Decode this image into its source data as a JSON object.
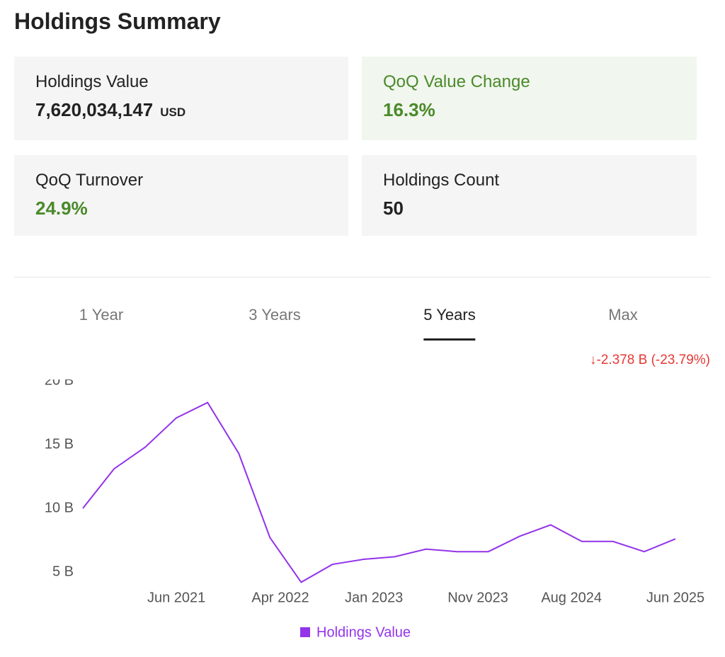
{
  "header": {
    "title": "Holdings Summary"
  },
  "cards": [
    {
      "label": "Holdings Value",
      "value": "7,620,034,147",
      "unit": "USD"
    },
    {
      "label": "QoQ Value Change",
      "value": "16.3%"
    },
    {
      "label": "QoQ Turnover",
      "value": "24.9%"
    },
    {
      "label": "Holdings Count",
      "value": "50"
    }
  ],
  "tabs": {
    "items": [
      "1 Year",
      "3 Years",
      "5 Years",
      "Max"
    ],
    "active": 2
  },
  "chart_data": {
    "type": "line",
    "annotation": "↓-2.378 B (-23.79%)",
    "x": [
      "Sep 2020",
      "Dec 2020",
      "Mar 2021",
      "Jun 2021",
      "Sep 2021",
      "Dec 2021",
      "Mar 2022",
      "Jun 2022",
      "Sep 2022",
      "Dec 2022",
      "Mar 2023",
      "Jun 2023",
      "Sep 2023",
      "Dec 2023",
      "Mar 2024",
      "Jun 2024",
      "Sep 2024",
      "Dec 2024",
      "Mar 2025",
      "Jun 2025"
    ],
    "series": [
      {
        "name": "Holdings Value",
        "color": "#9333ea",
        "values": [
          10.0,
          13.1,
          14.8,
          17.1,
          18.3,
          14.3,
          7.7,
          4.2,
          5.6,
          6.0,
          6.2,
          6.8,
          6.6,
          6.6,
          7.8,
          8.7,
          7.4,
          7.4,
          6.6,
          7.6
        ]
      }
    ],
    "xlim": [
      "Sep 2020",
      "Jun 2025"
    ],
    "xticks": [
      "Jun 2021",
      "Apr 2022",
      "Jan 2023",
      "Nov 2023",
      "Aug 2024",
      "Jun 2025"
    ],
    "ylim": [
      4,
      20
    ],
    "yticks": [
      {
        "value": 5,
        "label": "5 B"
      },
      {
        "value": 10,
        "label": "10 B"
      },
      {
        "value": 15,
        "label": "15 B"
      },
      {
        "value": 20,
        "label": "20 B"
      }
    ],
    "grid": false,
    "legend": "bottom"
  }
}
